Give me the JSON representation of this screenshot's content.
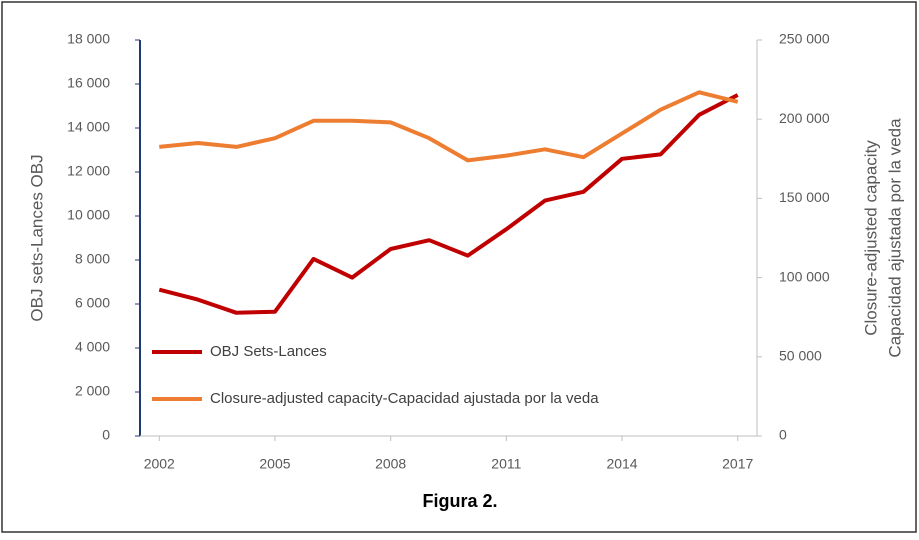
{
  "chart_data": {
    "type": "line",
    "caption": "Figura 2.",
    "ylabel": "OBJ sets-Lances  OBJ",
    "y2label": [
      "Closure-adjusted  capacity",
      "Capacidad ajustada por la veda"
    ],
    "x": [
      2002,
      2003,
      2004,
      2005,
      2006,
      2007,
      2008,
      2009,
      2010,
      2011,
      2012,
      2013,
      2014,
      2015,
      2016,
      2017
    ],
    "xlim": [
      2001.5,
      2017.5
    ],
    "xticks": [
      2002,
      2005,
      2008,
      2011,
      2014,
      2017
    ],
    "ylim": [
      0,
      18000
    ],
    "yticks": [
      0,
      {
        "value": 2000,
        "label": "2 000"
      },
      {
        "value": 4000,
        "label": "4 000"
      },
      {
        "value": 6000,
        "label": "6 000"
      },
      {
        "value": 8000,
        "label": "8 000"
      },
      {
        "value": 10000,
        "label": "10 000"
      },
      {
        "value": 12000,
        "label": "12 000"
      },
      {
        "value": 14000,
        "label": "14 000"
      },
      {
        "value": 16000,
        "label": "16 000"
      },
      {
        "value": 18000,
        "label": "18 000"
      }
    ],
    "y2lim": [
      0,
      250000
    ],
    "y2ticks": [
      0,
      {
        "value": 50000,
        "label": "50 000"
      },
      {
        "value": 100000,
        "label": "100 000"
      },
      {
        "value": 150000,
        "label": "150 000"
      },
      {
        "value": 200000,
        "label": "200 000"
      },
      {
        "value": 250000,
        "label": "250 000"
      }
    ],
    "legend": "lower left",
    "series": [
      {
        "name": "OBJ Sets-Lances",
        "color": "#c00000",
        "values": [
          6650,
          6200,
          5600,
          5650,
          8050,
          7200,
          8500,
          8900,
          8200,
          9400,
          10700,
          11100,
          12600,
          12800,
          14600,
          15500
        ]
      },
      {
        "name": "Closure-adjusted capacity-Capacidad ajustada por la veda",
        "color": "#ed7d31",
        "axis": "y2",
        "values": [
          182500,
          185000,
          182500,
          188000,
          199000,
          199000,
          198000,
          188000,
          174000,
          177000,
          181000,
          176000,
          191000,
          206000,
          217000,
          211000
        ]
      }
    ]
  }
}
